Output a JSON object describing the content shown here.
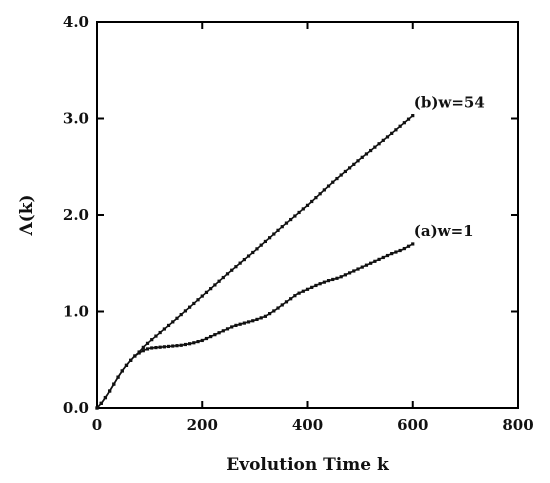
{
  "chart_data": {
    "type": "line",
    "xlabel": "Evolution Time k",
    "ylabel": "Λ(k)",
    "xlim": [
      0,
      800
    ],
    "ylim": [
      0,
      4
    ],
    "xticks": [
      "0",
      "200",
      "400",
      "600",
      "800"
    ],
    "yticks": [
      "0.0",
      "1.0",
      "2.0",
      "3.0",
      "4.0"
    ],
    "grid": false,
    "marker": "small filled squares",
    "series": [
      {
        "name": "(a)w=1",
        "x": [
          0,
          10,
          20,
          30,
          40,
          50,
          60,
          70,
          80,
          90,
          100,
          120,
          140,
          160,
          180,
          200,
          220,
          240,
          260,
          280,
          300,
          320,
          340,
          360,
          380,
          400,
          420,
          440,
          460,
          480,
          500,
          520,
          540,
          560,
          580,
          600
        ],
        "y": [
          0.0,
          0.06,
          0.14,
          0.23,
          0.32,
          0.4,
          0.47,
          0.53,
          0.57,
          0.6,
          0.62,
          0.63,
          0.64,
          0.65,
          0.67,
          0.7,
          0.75,
          0.8,
          0.85,
          0.88,
          0.91,
          0.95,
          1.02,
          1.1,
          1.18,
          1.23,
          1.28,
          1.32,
          1.35,
          1.4,
          1.45,
          1.5,
          1.55,
          1.6,
          1.64,
          1.7
        ]
      },
      {
        "name": "(b)w=54",
        "x": [
          0,
          10,
          20,
          30,
          40,
          50,
          60,
          70,
          80,
          90,
          100,
          150,
          200,
          250,
          300,
          350,
          400,
          450,
          500,
          550,
          600
        ],
        "y": [
          0.0,
          0.06,
          0.14,
          0.23,
          0.32,
          0.4,
          0.47,
          0.53,
          0.58,
          0.64,
          0.69,
          0.92,
          1.16,
          1.4,
          1.63,
          1.87,
          2.1,
          2.35,
          2.58,
          2.8,
          3.03
        ]
      }
    ]
  }
}
